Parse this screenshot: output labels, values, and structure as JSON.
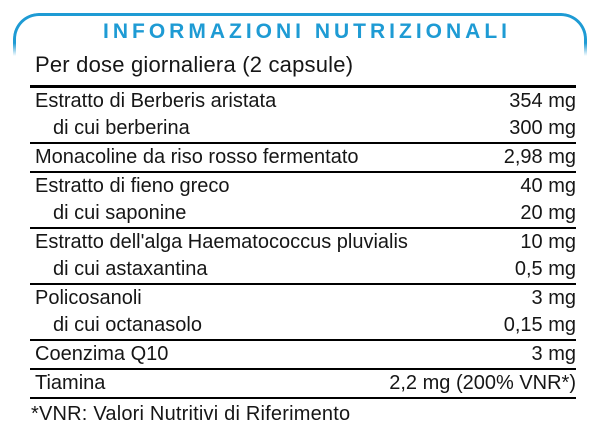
{
  "label": {
    "accent_color": "#1E9BD4",
    "title": "INFORMAZIONI NUTRIZIONALI",
    "serving_line": "Per dose giornaliera (2 capsule)",
    "footnote": "*VNR: Valori Nutritivi di Riferimento",
    "columns": [
      "ingredient",
      "amount"
    ],
    "sections": [
      {
        "rows": [
          {
            "name": "Estratto di Berberis aristata",
            "value": "354 mg",
            "sub": false
          },
          {
            "name": "di cui berberina",
            "value": "300 mg",
            "sub": true
          }
        ]
      },
      {
        "rows": [
          {
            "name": "Monacoline da riso rosso fermentato",
            "value": "2,98 mg",
            "sub": false
          }
        ]
      },
      {
        "rows": [
          {
            "name": "Estratto di fieno greco",
            "value": "40 mg",
            "sub": false
          },
          {
            "name": "di cui saponine",
            "value": "20 mg",
            "sub": true
          }
        ]
      },
      {
        "rows": [
          {
            "name": "Estratto dell'alga Haematococcus pluvialis",
            "value": "10 mg",
            "sub": false
          },
          {
            "name": "di cui astaxantina",
            "value": "0,5 mg",
            "sub": true
          }
        ]
      },
      {
        "rows": [
          {
            "name": "Policosanoli",
            "value": "3 mg",
            "sub": false
          },
          {
            "name": "di cui octanasolo",
            "value": "0,15 mg",
            "sub": true
          }
        ]
      },
      {
        "rows": [
          {
            "name": "Coenzima Q10",
            "value": "3 mg",
            "sub": false
          }
        ]
      },
      {
        "rows": [
          {
            "name": "Tiamina",
            "value": "2,2 mg (200% VNR*)",
            "sub": false
          }
        ]
      }
    ]
  }
}
